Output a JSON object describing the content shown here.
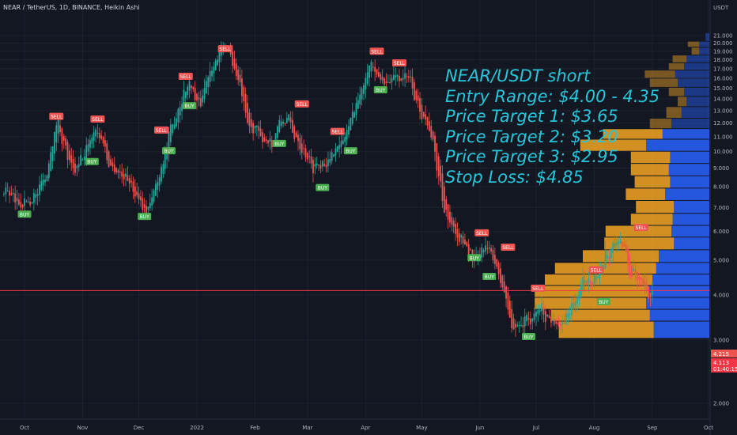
{
  "header": {
    "symbol_line": "NEAR / TetherUS, 1D, BINANCE, Heikin Ashi"
  },
  "axis": {
    "currency": "USDT"
  },
  "annotation": {
    "lines": [
      "NEAR/USDT short",
      "Entry Range: $4.00 - 4.35",
      "Price Target 1: $3.65",
      "Price Target 2: $3.20",
      "Price Target 3: $2.95",
      "Stop Loss: $4.85"
    ]
  },
  "colors": {
    "background": "#131722",
    "grid": "#1e222d",
    "up": "#26a69a",
    "down": "#ef5350",
    "vp_up": "#2962ff",
    "vp_down": "#f5a623",
    "annotation": "#26c6da",
    "price_line": "#f23645",
    "buy_label": "#4caf50",
    "sell_label": "#ef5350"
  },
  "price_labels": {
    "last": "4.215",
    "current": "4.113",
    "countdown": "01:40:15"
  },
  "chart_data": {
    "type": "candlestick",
    "subtype": "heikin-ashi",
    "title": "NEAR / TetherUS, 1D, BINANCE, Heikin Ashi",
    "ylabel": "USDT",
    "y_scale": "log",
    "ylim": [
      1.65,
      23.5
    ],
    "y_ticks": [
      "2.000",
      "3.000",
      "4.000",
      "5.000",
      "6.000",
      "7.000",
      "8.000",
      "9.000",
      "10.000",
      "11.000",
      "12.000",
      "13.000",
      "14.000",
      "15.000",
      "16.000",
      "17.000",
      "18.000",
      "19.000",
      "20.000",
      "21.000"
    ],
    "x_ticks": [
      "Oct",
      "Nov",
      "Dec",
      "2022",
      "Feb",
      "Mar",
      "Apr",
      "May",
      "Jun",
      "Jul",
      "Aug",
      "Sep",
      "Oct"
    ],
    "price_path": [
      {
        "date": "2021-09-20",
        "price": 8.0
      },
      {
        "date": "2021-09-28",
        "price": 7.0
      },
      {
        "date": "2021-10-05",
        "price": 7.4
      },
      {
        "date": "2021-10-12",
        "price": 8.5
      },
      {
        "date": "2021-10-18",
        "price": 12.0
      },
      {
        "date": "2021-10-22",
        "price": 10.3
      },
      {
        "date": "2021-10-28",
        "price": 8.6
      },
      {
        "date": "2021-11-03",
        "price": 10.5
      },
      {
        "date": "2021-11-08",
        "price": 11.8
      },
      {
        "date": "2021-11-14",
        "price": 9.5
      },
      {
        "date": "2021-11-25",
        "price": 8.2
      },
      {
        "date": "2021-12-04",
        "price": 6.8
      },
      {
        "date": "2021-12-10",
        "price": 8.0
      },
      {
        "date": "2021-12-15",
        "price": 10.5
      },
      {
        "date": "2021-12-22",
        "price": 13.5
      },
      {
        "date": "2021-12-28",
        "price": 15.0
      },
      {
        "date": "2022-01-02",
        "price": 14.0
      },
      {
        "date": "2022-01-08",
        "price": 17.0
      },
      {
        "date": "2022-01-16",
        "price": 20.0
      },
      {
        "date": "2022-01-22",
        "price": 16.0
      },
      {
        "date": "2022-01-28",
        "price": 12.0
      },
      {
        "date": "2022-02-04",
        "price": 11.0
      },
      {
        "date": "2022-02-10",
        "price": 10.5
      },
      {
        "date": "2022-02-17",
        "price": 12.5
      },
      {
        "date": "2022-02-26",
        "price": 10.0
      },
      {
        "date": "2022-03-06",
        "price": 8.8
      },
      {
        "date": "2022-03-14",
        "price": 9.8
      },
      {
        "date": "2022-03-22",
        "price": 11.5
      },
      {
        "date": "2022-03-30",
        "price": 15.5
      },
      {
        "date": "2022-04-03",
        "price": 18.0
      },
      {
        "date": "2022-04-09",
        "price": 15.0
      },
      {
        "date": "2022-04-16",
        "price": 16.0
      },
      {
        "date": "2022-04-22",
        "price": 17.0
      },
      {
        "date": "2022-04-30",
        "price": 13.0
      },
      {
        "date": "2022-05-07",
        "price": 10.5
      },
      {
        "date": "2022-05-12",
        "price": 7.0
      },
      {
        "date": "2022-05-20",
        "price": 5.8
      },
      {
        "date": "2022-05-28",
        "price": 5.2
      },
      {
        "date": "2022-06-05",
        "price": 5.3
      },
      {
        "date": "2022-06-13",
        "price": 4.2
      },
      {
        "date": "2022-06-18",
        "price": 3.1
      },
      {
        "date": "2022-06-26",
        "price": 3.4
      },
      {
        "date": "2022-07-04",
        "price": 3.6
      },
      {
        "date": "2022-07-14",
        "price": 3.2
      },
      {
        "date": "2022-07-24",
        "price": 4.2
      },
      {
        "date": "2022-08-01",
        "price": 4.5
      },
      {
        "date": "2022-08-08",
        "price": 5.2
      },
      {
        "date": "2022-08-14",
        "price": 5.9
      },
      {
        "date": "2022-08-20",
        "price": 4.6
      },
      {
        "date": "2022-08-27",
        "price": 4.1
      },
      {
        "date": "2022-09-01",
        "price": 4.1
      }
    ],
    "signals": [
      {
        "label": "BUY",
        "date": "2021-10-01",
        "price": 7.0
      },
      {
        "label": "SELL",
        "date": "2021-10-18",
        "price": 12.0
      },
      {
        "label": "BUY",
        "date": "2021-11-06",
        "price": 9.8
      },
      {
        "label": "SELL",
        "date": "2021-11-09",
        "price": 11.8
      },
      {
        "label": "BUY",
        "date": "2021-12-04",
        "price": 6.9
      },
      {
        "label": "SELL",
        "date": "2021-12-13",
        "price": 11.0
      },
      {
        "label": "BUY",
        "date": "2021-12-17",
        "price": 10.5
      },
      {
        "label": "SELL",
        "date": "2021-12-26",
        "price": 15.5
      },
      {
        "label": "BUY",
        "date": "2021-12-28",
        "price": 14.0
      },
      {
        "label": "SELL",
        "date": "2022-01-16",
        "price": 18.5
      },
      {
        "label": "SELL",
        "date": "2022-02-26",
        "price": 13.0
      },
      {
        "label": "BUY",
        "date": "2022-02-14",
        "price": 11.0
      },
      {
        "label": "BUY",
        "date": "2022-03-09",
        "price": 8.3
      },
      {
        "label": "SELL",
        "date": "2022-03-17",
        "price": 10.9
      },
      {
        "label": "BUY",
        "date": "2022-03-24",
        "price": 10.5
      },
      {
        "label": "SELL",
        "date": "2022-04-07",
        "price": 18.2
      },
      {
        "label": "BUY",
        "date": "2022-04-09",
        "price": 15.5
      },
      {
        "label": "SELL",
        "date": "2022-04-19",
        "price": 16.9
      },
      {
        "label": "SELL",
        "date": "2022-06-02",
        "price": 5.7
      },
      {
        "label": "BUY",
        "date": "2022-05-29",
        "price": 5.3
      },
      {
        "label": "BUY",
        "date": "2022-06-06",
        "price": 4.7
      },
      {
        "label": "SELL",
        "date": "2022-06-16",
        "price": 5.2
      },
      {
        "label": "BUY",
        "date": "2022-06-27",
        "price": 3.2
      },
      {
        "label": "SELL",
        "date": "2022-07-02",
        "price": 4.0
      },
      {
        "label": "BUY",
        "date": "2022-08-06",
        "price": 4.0
      },
      {
        "label": "SELL",
        "date": "2022-08-02",
        "price": 4.5
      },
      {
        "label": "SELL",
        "date": "2022-08-26",
        "price": 5.9
      }
    ],
    "volume_profile": {
      "rows": [
        {
          "price": 20.5,
          "up": 0.03,
          "down": 0.0
        },
        {
          "price": 19.9,
          "up": 0.08,
          "down": 0.09
        },
        {
          "price": 19.0,
          "up": 0.08,
          "down": 0.06
        },
        {
          "price": 18.0,
          "up": 0.18,
          "down": 0.11
        },
        {
          "price": 17.2,
          "up": 0.2,
          "down": 0.12
        },
        {
          "price": 16.4,
          "up": 0.27,
          "down": 0.24
        },
        {
          "price": 15.5,
          "up": 0.25,
          "down": 0.22
        },
        {
          "price": 14.6,
          "up": 0.2,
          "down": 0.12
        },
        {
          "price": 13.8,
          "up": 0.18,
          "down": 0.07
        },
        {
          "price": 12.8,
          "up": 0.22,
          "down": 0.12
        },
        {
          "price": 11.9,
          "up": 0.3,
          "down": 0.17
        },
        {
          "price": 11.2,
          "up": 0.37,
          "down": 0.47
        },
        {
          "price": 10.4,
          "up": 0.5,
          "down": 0.52
        },
        {
          "price": 9.6,
          "up": 0.31,
          "down": 0.31
        },
        {
          "price": 8.9,
          "up": 0.32,
          "down": 0.3
        },
        {
          "price": 8.2,
          "up": 0.31,
          "down": 0.28
        },
        {
          "price": 7.6,
          "up": 0.35,
          "down": 0.31
        },
        {
          "price": 7.0,
          "up": 0.28,
          "down": 0.3
        },
        {
          "price": 6.45,
          "up": 0.29,
          "down": 0.33
        },
        {
          "price": 6.0,
          "up": 0.3,
          "down": 0.52
        },
        {
          "price": 5.55,
          "up": 0.28,
          "down": 0.55
        },
        {
          "price": 5.1,
          "up": 0.4,
          "down": 0.6
        },
        {
          "price": 4.72,
          "up": 0.42,
          "down": 0.8
        },
        {
          "price": 4.4,
          "up": 0.45,
          "down": 0.85
        },
        {
          "price": 4.08,
          "up": 0.48,
          "down": 0.9
        },
        {
          "price": 3.78,
          "up": 0.5,
          "down": 0.88
        },
        {
          "price": 3.5,
          "up": 0.47,
          "down": 0.78
        },
        {
          "price": 3.25,
          "up": 0.44,
          "down": 0.75
        }
      ]
    },
    "price_line": 4.113,
    "legend": "none",
    "grid": true
  }
}
